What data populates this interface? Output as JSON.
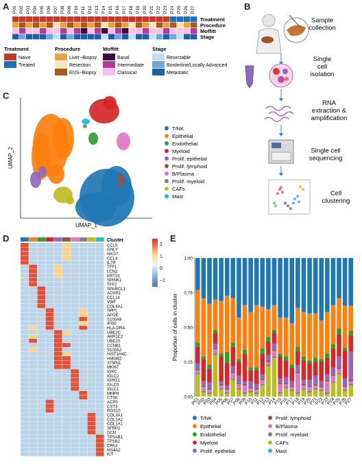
{
  "panels": {
    "A": "A",
    "B": "B",
    "C": "C",
    "D": "D",
    "E": "E"
  },
  "panelA": {
    "patients": [
      "P01",
      "P02",
      "P03",
      "P04",
      "P05",
      "P06",
      "P07",
      "P08",
      "P09",
      "P10",
      "P11",
      "P12",
      "P13",
      "P14",
      "P15",
      "P16",
      "P17",
      "P18",
      "P19",
      "P20",
      "P21",
      "P22",
      "P23",
      "P24",
      "P25",
      "P26",
      "P27"
    ],
    "row_labels": [
      "Treatment",
      "Procedure",
      "Moffitt",
      "Stage"
    ],
    "rows": {
      "Treatment": [
        "Naive",
        "Naive",
        "Naive",
        "Naive",
        "Naive",
        "Naive",
        "Naive",
        "Naive",
        "Naive",
        "Naive",
        "Naive",
        "Naive",
        "Naive",
        "Naive",
        "Naive",
        "Naive",
        "Naive",
        "Naive",
        "Naive",
        "Naive",
        "Naive",
        "Naive",
        "Naive",
        "Treated",
        "Treated",
        "Treated",
        "Treated"
      ],
      "Procedure": [
        "Liver-Biopsy",
        "EUS-Biopsy",
        "Liver-Biopsy",
        "EUS-Biopsy",
        "Liver-Biopsy",
        "EUS-Biopsy",
        "Resection",
        "Liver-Biopsy",
        "EUS-Biopsy",
        "Liver-Biopsy",
        "EUS-Biopsy",
        "Liver-Biopsy",
        "EUS-Biopsy",
        "Resection",
        "Liver-Biopsy",
        "EUS-Biopsy",
        "Liver-Biopsy",
        "Resection",
        "EUS-Biopsy",
        "Liver-Biopsy",
        "Resection",
        "EUS-Biopsy",
        "Liver-Biopsy",
        "EUS-Biopsy",
        "Resection",
        "Liver-Biopsy",
        "EUS-Biopsy"
      ],
      "Moffitt": [
        "Classical",
        "Intermediate",
        "Classical",
        "Classical",
        "Intermediate",
        "Classical",
        "Classical",
        "Intermediate",
        "Classical",
        "Intermediate",
        "Basal",
        "Classical",
        "Intermediate",
        "Basal",
        "Classical",
        "Intermediate",
        "Basal",
        "Classical",
        "Classical",
        "Intermediate",
        "Classical",
        "Classical",
        "Intermediate",
        "Classical",
        "Classical",
        "Classical",
        "Intermediate"
      ],
      "Stage": [
        "Metastatic",
        "Borderline/Locally Advanced",
        "Metastatic",
        "Metastatic",
        "Metastatic",
        "Borderline/Locally Advanced",
        "Resectable",
        "Metastatic",
        "Borderline/Locally Advanced",
        "Metastatic",
        "Metastatic",
        "Metastatic",
        "Metastatic",
        "Resectable",
        "Metastatic",
        "Borderline/Locally Advanced",
        "Metastatic",
        "Resectable",
        "Metastatic",
        "Metastatic",
        "Resectable",
        "Borderline/Locally Advanced",
        "Metastatic",
        "Borderline/Locally Advanced",
        "Resectable",
        "Metastatic",
        "Metastatic"
      ]
    },
    "legend": [
      {
        "title": "Treatment",
        "items": [
          {
            "label": "Naive",
            "color": "#c0392b"
          },
          {
            "label": "Treated",
            "color": "#1f6fb5"
          }
        ]
      },
      {
        "title": "Procedure",
        "items": [
          {
            "label": "Liver−Biopsy",
            "color": "#e8a33d"
          },
          {
            "label": "Resection",
            "color": "#fae3b4"
          },
          {
            "label": "EUS−Biopsy",
            "color": "#a85a1a"
          }
        ]
      },
      {
        "title": "Moffitt",
        "items": [
          {
            "label": "Basal",
            "color": "#3b0a45"
          },
          {
            "label": "Intermediate",
            "color": "#b23aa0"
          },
          {
            "label": "Classical",
            "color": "#f2c2e8"
          }
        ]
      },
      {
        "title": "Stage",
        "items": [
          {
            "label": "Resectable",
            "color": "#c4dff0"
          },
          {
            "label": "Borderline/Locally Advanced",
            "color": "#6fa8d6"
          },
          {
            "label": "Metastatic",
            "color": "#1f5f9e"
          }
        ]
      }
    ],
    "colors": {
      "Naive": "#c0392b",
      "Treated": "#1f6fb5",
      "Liver-Biopsy": "#e8a33d",
      "Resection": "#fae3b4",
      "EUS-Biopsy": "#a85a1a",
      "Basal": "#3b0a45",
      "Intermediate": "#b23aa0",
      "Classical": "#f2c2e8",
      "Resectable": "#c4dff0",
      "Borderline/Locally Advanced": "#6fa8d6",
      "Metastatic": "#1f5f9e"
    }
  },
  "panelB": {
    "steps": [
      "Sample\ncollection",
      "Single\ncell\nisolation",
      "RNA\nextraction &\namplification",
      "Single cell\nsequencing",
      "Cell\nclustering"
    ]
  },
  "panelC": {
    "xlabel": "UMAP_1",
    "ylabel": "UMAP_2",
    "clusters": [
      {
        "name": "T/NK",
        "color": "#1f77b4"
      },
      {
        "name": "Epithelial",
        "color": "#ff7f0e"
      },
      {
        "name": "Endothelial",
        "color": "#2ca02c"
      },
      {
        "name": "Myeloid",
        "color": "#d62728"
      },
      {
        "name": "Prolif. epithelial",
        "color": "#9467bd"
      },
      {
        "name": "Prolif. lymphoid",
        "color": "#8c564b"
      },
      {
        "name": "B/Plasma",
        "color": "#e377c2"
      },
      {
        "name": "Prolif. myeloid",
        "color": "#7f7f7f"
      },
      {
        "name": "CAFs",
        "color": "#bcbd22"
      },
      {
        "name": "Mast",
        "color": "#17becf"
      }
    ]
  },
  "panelD": {
    "cluster_label": "Cluster",
    "genes": [
      "CCL5",
      "GNLY",
      "NKG7",
      "CCL4",
      "IL7R",
      "TFF1",
      "LCN2",
      "KRT19",
      "SPINK1",
      "TFF2",
      "SPARCL1",
      "ACKR1",
      "CCL14",
      "VWF",
      "COL4A1",
      "SPP1",
      "APOE",
      "S100A9",
      "IFI30",
      "HLA-DRA",
      "UBE2C",
      "AKR1C2",
      "UBE2S",
      "CCNB1",
      "S100A2",
      "HIST1H4C",
      "HMGB2",
      "STMN1",
      "MKI67",
      "IGKC",
      "IGLC2",
      "IGHG1",
      "IGLC3",
      "IGLC1",
      "MMP9",
      "CTSK",
      "ACP5",
      "CST3",
      "RGS10",
      "COL3A1",
      "COL1A2",
      "COL1A1",
      "SFRP2",
      "DCN",
      "TPSAB1",
      "TPSB2",
      "CPA3",
      "MS4A2",
      "KIT"
    ],
    "colorbar_ticks": [
      "2",
      "1",
      "0",
      "−1"
    ],
    "cluster_colors": [
      "#1f77b4",
      "#ff7f0e",
      "#2ca02c",
      "#d62728",
      "#9467bd",
      "#8c564b",
      "#e377c2",
      "#7f7f7f",
      "#bcbd22",
      "#17becf"
    ]
  },
  "chart_data": {
    "type": "bar",
    "stacked": true,
    "ylabel": "Proportion of cells in cluster",
    "ylim": [
      0,
      1
    ],
    "yticks": [
      "0.00",
      "0.25",
      "0.50",
      "0.75",
      "1.00"
    ],
    "categories": [
      "P01",
      "P02",
      "P03",
      "P04",
      "P05",
      "P06",
      "P07",
      "P08",
      "P09",
      "P10",
      "P11",
      "P12",
      "P13",
      "P14",
      "P15",
      "P16",
      "P17",
      "P18",
      "P19",
      "P20",
      "P21",
      "P22",
      "P23",
      "P24",
      "P25",
      "P26",
      "P27"
    ],
    "series": [
      {
        "name": "CAFs",
        "values": [
          0.16,
          0.03,
          0.02,
          0.3,
          0.05,
          0.02,
          0.12,
          0.05,
          0.02,
          0.03,
          0.02,
          0.08,
          0.22,
          0.28,
          0.02,
          0.06,
          0.04,
          0.02,
          0.05,
          0.03,
          0.05,
          0.04,
          0.02,
          0.1,
          0.16,
          0.04,
          0.08
        ]
      },
      {
        "name": "Prolif. myeloid",
        "values": [
          0.01,
          0.01,
          0.01,
          0.01,
          0.01,
          0.01,
          0.01,
          0.01,
          0.01,
          0.01,
          0.01,
          0.01,
          0.01,
          0.01,
          0.01,
          0.01,
          0.01,
          0.01,
          0.01,
          0.01,
          0.01,
          0.01,
          0.01,
          0.01,
          0.01,
          0.01,
          0.01
        ]
      },
      {
        "name": "B/Plasma",
        "values": [
          0.02,
          0.03,
          0.02,
          0.03,
          0.02,
          0.02,
          0.04,
          0.03,
          0.05,
          0.02,
          0.02,
          0.03,
          0.02,
          0.04,
          0.06,
          0.02,
          0.02,
          0.14,
          0.02,
          0.03,
          0.02,
          0.02,
          0.08,
          0.04,
          0.03,
          0.02,
          0.02
        ]
      },
      {
        "name": "Prolif. lymphoid",
        "values": [
          0.01,
          0.01,
          0.01,
          0.01,
          0.01,
          0.01,
          0.01,
          0.01,
          0.01,
          0.01,
          0.01,
          0.01,
          0.01,
          0.01,
          0.01,
          0.01,
          0.01,
          0.01,
          0.01,
          0.01,
          0.01,
          0.01,
          0.01,
          0.01,
          0.01,
          0.01,
          0.01
        ]
      },
      {
        "name": "Prolif. epithelial",
        "values": [
          0.04,
          0.03,
          0.04,
          0.03,
          0.02,
          0.02,
          0.04,
          0.05,
          0.02,
          0.04,
          0.03,
          0.03,
          0.04,
          0.04,
          0.03,
          0.04,
          0.03,
          0.05,
          0.03,
          0.04,
          0.06,
          0.03,
          0.04,
          0.05,
          0.08,
          0.05,
          0.2
        ]
      },
      {
        "name": "Myeloid",
        "values": [
          0.12,
          0.16,
          0.1,
          0.08,
          0.18,
          0.16,
          0.14,
          0.1,
          0.2,
          0.08,
          0.1,
          0.15,
          0.1,
          0.08,
          0.16,
          0.12,
          0.1,
          0.1,
          0.14,
          0.12,
          0.1,
          0.14,
          0.12,
          0.14,
          0.16,
          0.2,
          0.12
        ]
      },
      {
        "name": "Endothelial",
        "values": [
          0.03,
          0.02,
          0.03,
          0.02,
          0.02,
          0.08,
          0.03,
          0.02,
          0.03,
          0.02,
          0.02,
          0.04,
          0.03,
          0.02,
          0.02,
          0.03,
          0.02,
          0.03,
          0.03,
          0.02,
          0.03,
          0.02,
          0.03,
          0.03,
          0.04,
          0.02,
          0.03
        ]
      },
      {
        "name": "Epithelial",
        "values": [
          0.38,
          0.42,
          0.44,
          0.22,
          0.38,
          0.4,
          0.32,
          0.3,
          0.32,
          0.4,
          0.45,
          0.3,
          0.2,
          0.18,
          0.26,
          0.28,
          0.3,
          0.28,
          0.32,
          0.34,
          0.32,
          0.28,
          0.3,
          0.28,
          0.22,
          0.3,
          0.18
        ]
      },
      {
        "name": "T/NK",
        "values": [
          0.23,
          0.29,
          0.33,
          0.3,
          0.31,
          0.27,
          0.29,
          0.43,
          0.34,
          0.39,
          0.34,
          0.35,
          0.37,
          0.34,
          0.43,
          0.43,
          0.47,
          0.36,
          0.39,
          0.4,
          0.4,
          0.45,
          0.39,
          0.34,
          0.29,
          0.34,
          0.34
        ]
      }
    ],
    "legend_order": [
      "T/NK",
      "Epithelial",
      "Endothelial",
      "Myeloid",
      "Prolif. epithelial",
      "Prolif. lymphoid",
      "B/Plasma",
      "Prolif. myeloid",
      "CAFs",
      "Mast"
    ],
    "colors": {
      "T/NK": "#1f77b4",
      "Epithelial": "#ff7f0e",
      "Endothelial": "#2ca02c",
      "Myeloid": "#d62728",
      "Prolif. epithelial": "#9467bd",
      "Prolif. lymphoid": "#8c564b",
      "B/Plasma": "#e377c2",
      "Prolif. myeloid": "#7f7f7f",
      "CAFs": "#bcbd22",
      "Mast": "#17becf"
    }
  }
}
